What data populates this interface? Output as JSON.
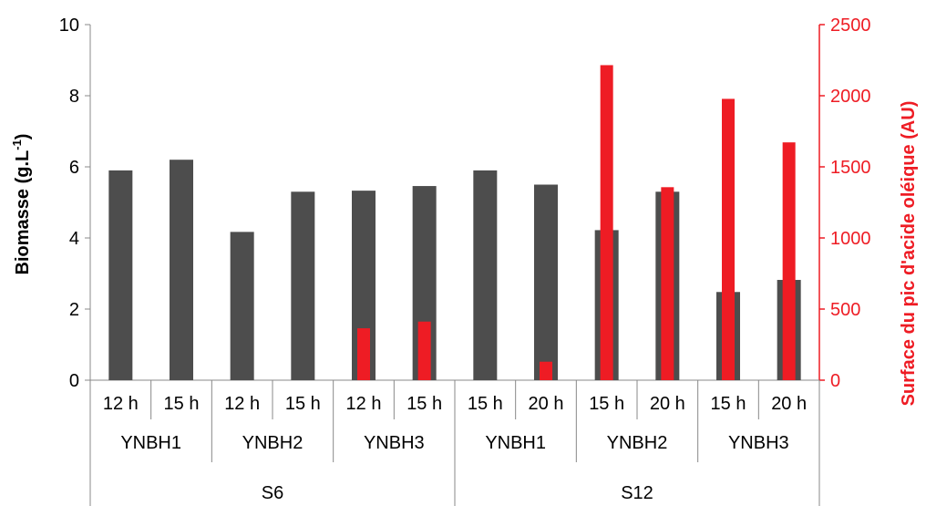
{
  "chart_data": {
    "type": "bar",
    "title": "",
    "ylabel_left": "Biomasse (g.L",
    "ylabel_left_sup": "-1",
    "ylabel_left_end": ")",
    "ylabel_right": "Surface du pic d'acide oléique (AU)",
    "ylim_left": [
      0,
      10
    ],
    "ylim_right": [
      0,
      2500
    ],
    "yticks_left": [
      "0",
      "2",
      "4",
      "6",
      "8",
      "10"
    ],
    "yticks_right": [
      "0",
      "500",
      "1000",
      "1500",
      "2000",
      "2500"
    ],
    "categories": [
      "12 h",
      "15 h",
      "12 h",
      "15 h",
      "12 h",
      "15 h",
      "15 h",
      "20 h",
      "15 h",
      "20 h",
      "15 h",
      "20 h"
    ],
    "strains": [
      "YNBH1",
      "YNBH2",
      "YNBH3",
      "YNBH1",
      "YNBH2",
      "YNBH3"
    ],
    "media": [
      "S6",
      "S12"
    ],
    "series": [
      {
        "axis": "left",
        "color": "#4d4d4d",
        "values": [
          5.9,
          6.2,
          4.17,
          5.3,
          5.33,
          5.46,
          5.9,
          5.5,
          4.22,
          5.3,
          2.48,
          2.82
        ]
      },
      {
        "axis": "right",
        "color": "#ee1c24",
        "values": [
          0,
          0,
          0,
          0,
          365,
          412,
          0,
          130,
          2215,
          1357,
          1978,
          1672
        ]
      }
    ],
    "grid": false,
    "legend": "none"
  }
}
